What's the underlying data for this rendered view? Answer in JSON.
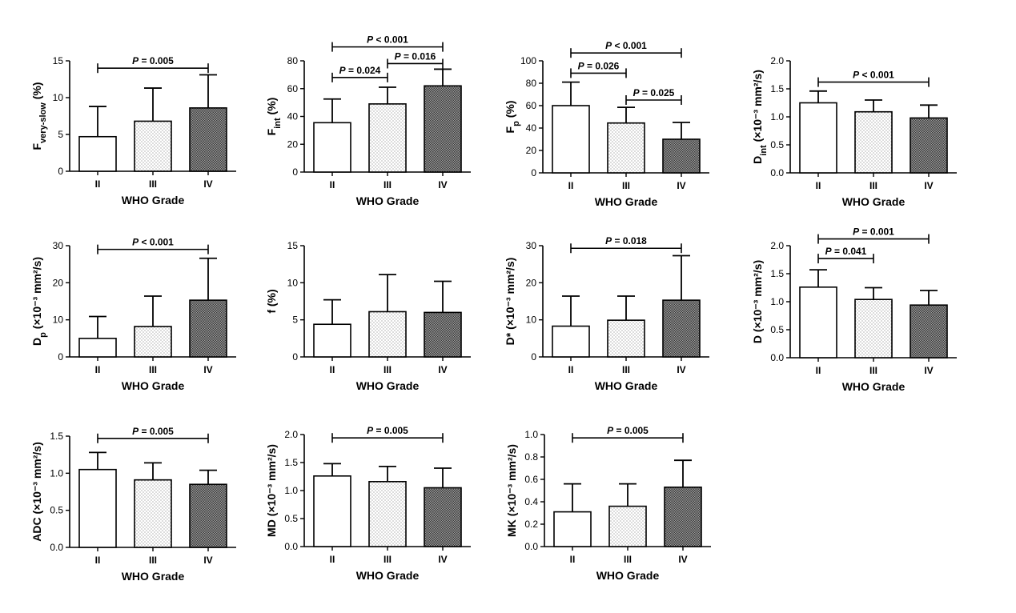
{
  "chart_data": [
    {
      "id": "f_very_slow",
      "type": "bar",
      "ylabel": "F",
      "ylabel_sub": "very-slow",
      "ylabel_unit": " (%)",
      "xlabel": "WHO Grade",
      "categories": [
        "II",
        "III",
        "IV"
      ],
      "values": [
        4.7,
        6.8,
        8.6
      ],
      "errors": [
        4.1,
        4.5,
        4.5
      ],
      "ylim": [
        0,
        15
      ],
      "yticks": [
        "0",
        "5",
        "10",
        "15"
      ],
      "significance": [
        {
          "from": 0,
          "to": 2,
          "label": "= 0.005",
          "level": 14.0
        }
      ]
    },
    {
      "id": "f_int",
      "type": "bar",
      "ylabel": "F",
      "ylabel_sub": "int",
      "ylabel_unit": " (%)",
      "xlabel": "WHO Grade",
      "categories": [
        "II",
        "III",
        "IV"
      ],
      "values": [
        35.5,
        49,
        62
      ],
      "errors": [
        17,
        12,
        12
      ],
      "ylim": [
        0,
        80
      ],
      "yticks": [
        "0",
        "20",
        "40",
        "60",
        "80"
      ],
      "significance": [
        {
          "from": 0,
          "to": 1,
          "label": "= 0.024",
          "level": 68
        },
        {
          "from": 1,
          "to": 2,
          "label": "= 0.016",
          "level": 78
        },
        {
          "from": 0,
          "to": 2,
          "label": "< 0.001",
          "level": 90
        }
      ]
    },
    {
      "id": "f_p",
      "type": "bar",
      "ylabel": "F",
      "ylabel_sub": "p",
      "ylabel_unit": " (%)",
      "xlabel": "WHO Grade",
      "categories": [
        "II",
        "III",
        "IV"
      ],
      "values": [
        60,
        44.5,
        30
      ],
      "errors": [
        21,
        14,
        15
      ],
      "ylim": [
        0,
        100
      ],
      "yticks": [
        "0",
        "20",
        "40",
        "60",
        "80",
        "100"
      ],
      "significance": [
        {
          "from": 0,
          "to": 1,
          "label": "= 0.026",
          "level": 89
        },
        {
          "from": 1,
          "to": 2,
          "label": "= 0.025",
          "level": 65
        },
        {
          "from": 0,
          "to": 2,
          "label": "< 0.001",
          "level": 107
        }
      ]
    },
    {
      "id": "d_int",
      "type": "bar",
      "ylabel": "D",
      "ylabel_sub": "int",
      "ylabel_unit": " (×10⁻³ mm²/s)",
      "xlabel": "WHO Grade",
      "categories": [
        "II",
        "III",
        "IV"
      ],
      "values": [
        1.25,
        1.09,
        0.98
      ],
      "errors": [
        0.21,
        0.21,
        0.23
      ],
      "ylim": [
        0,
        2.0
      ],
      "yticks": [
        "0.0",
        "0.5",
        "1.0",
        "1.5",
        "2.0"
      ],
      "significance": [
        {
          "from": 0,
          "to": 2,
          "label": "< 0.001",
          "level": 1.62
        }
      ]
    },
    {
      "id": "d_p",
      "type": "bar",
      "ylabel": "D",
      "ylabel_sub": "p",
      "ylabel_unit": " (×10⁻³ mm²/s)",
      "xlabel": "WHO Grade",
      "categories": [
        "II",
        "III",
        "IV"
      ],
      "values": [
        5,
        8.2,
        15.3
      ],
      "errors": [
        5.9,
        8.2,
        11.3
      ],
      "ylim": [
        0,
        30
      ],
      "yticks": [
        "0",
        "10",
        "20",
        "30"
      ],
      "significance": [
        {
          "from": 0,
          "to": 2,
          "label": "< 0.001",
          "level": 29
        }
      ]
    },
    {
      "id": "f",
      "type": "bar",
      "ylabel": "f (%)",
      "ylabel_sub": "",
      "ylabel_unit": "",
      "xlabel": "WHO Grade",
      "categories": [
        "II",
        "III",
        "IV"
      ],
      "values": [
        4.4,
        6.1,
        6.0
      ],
      "errors": [
        3.3,
        5.0,
        4.2
      ],
      "ylim": [
        0,
        15
      ],
      "yticks": [
        "0",
        "5",
        "10",
        "15"
      ],
      "significance": []
    },
    {
      "id": "d_star",
      "type": "bar",
      "ylabel": "D* (×10⁻³ mm²/s)",
      "ylabel_sub": "",
      "ylabel_unit": "",
      "xlabel": "WHO Grade",
      "categories": [
        "II",
        "III",
        "IV"
      ],
      "values": [
        8.3,
        9.9,
        15.3
      ],
      "errors": [
        8.1,
        6.5,
        12.0
      ],
      "ylim": [
        0,
        30
      ],
      "yticks": [
        "0",
        "10",
        "20",
        "30"
      ],
      "significance": [
        {
          "from": 0,
          "to": 2,
          "label": "= 0.018",
          "level": 29.3
        }
      ]
    },
    {
      "id": "d",
      "type": "bar",
      "ylabel": "D (×10⁻³ mm²/s)",
      "ylabel_sub": "",
      "ylabel_unit": "",
      "xlabel": "WHO Grade",
      "categories": [
        "II",
        "III",
        "IV"
      ],
      "values": [
        1.26,
        1.04,
        0.94
      ],
      "errors": [
        0.31,
        0.21,
        0.26
      ],
      "ylim": [
        0,
        2.0
      ],
      "yticks": [
        "0.0",
        "0.5",
        "1.0",
        "1.5",
        "2.0"
      ],
      "significance": [
        {
          "from": 0,
          "to": 1,
          "label": "= 0.041",
          "level": 1.77
        },
        {
          "from": 0,
          "to": 2,
          "label": "= 0.001",
          "level": 2.12
        }
      ]
    },
    {
      "id": "adc",
      "type": "bar",
      "ylabel": "ADC (×10⁻³ mm²/s)",
      "ylabel_sub": "",
      "ylabel_unit": "",
      "xlabel": "WHO Grade",
      "categories": [
        "II",
        "III",
        "IV"
      ],
      "values": [
        1.05,
        0.91,
        0.85
      ],
      "errors": [
        0.23,
        0.23,
        0.19
      ],
      "ylim": [
        0,
        1.5
      ],
      "yticks": [
        "0.0",
        "0.5",
        "1.0",
        "1.5"
      ],
      "significance": [
        {
          "from": 0,
          "to": 2,
          "label": "= 0.005",
          "level": 1.47
        }
      ]
    },
    {
      "id": "md",
      "type": "bar",
      "ylabel": "MD (×10⁻³ mm²/s)",
      "ylabel_sub": "",
      "ylabel_unit": "",
      "xlabel": "WHO Grade",
      "categories": [
        "II",
        "III",
        "IV"
      ],
      "values": [
        1.26,
        1.16,
        1.05
      ],
      "errors": [
        0.22,
        0.27,
        0.35
      ],
      "ylim": [
        0,
        2.0
      ],
      "yticks": [
        "0.0",
        "0.5",
        "1.0",
        "1.5",
        "2.0"
      ],
      "significance": [
        {
          "from": 0,
          "to": 2,
          "label": "= 0.005",
          "level": 1.94
        }
      ]
    },
    {
      "id": "mk",
      "type": "bar",
      "ylabel": "MK (×10⁻³ mm²/s)",
      "ylabel_sub": "",
      "ylabel_unit": "",
      "xlabel": "WHO Grade",
      "categories": [
        "II",
        "III",
        "IV"
      ],
      "values": [
        0.31,
        0.36,
        0.53
      ],
      "errors": [
        0.25,
        0.2,
        0.24
      ],
      "ylim": [
        0,
        1.0
      ],
      "yticks": [
        "0.0",
        "0.2",
        "0.4",
        "0.6",
        "0.8",
        "1.0"
      ],
      "significance": [
        {
          "from": 0,
          "to": 2,
          "label": "= 0.005",
          "level": 0.97
        }
      ]
    }
  ],
  "p_symbol": "P"
}
